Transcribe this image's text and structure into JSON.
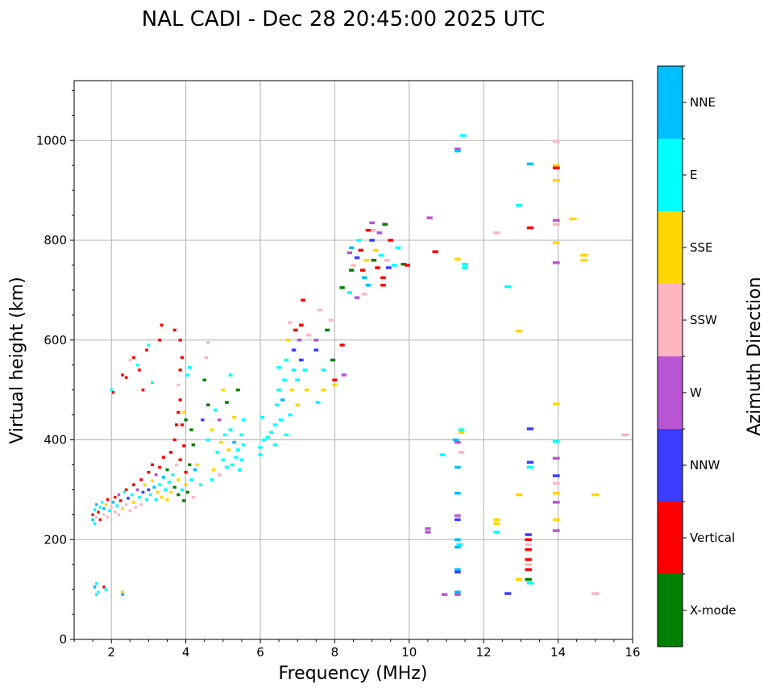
{
  "chart_data": {
    "type": "scatter",
    "title": "NAL CADI - Dec 28 20:45:00 2025 UTC",
    "xlabel": "Frequency (MHz)",
    "ylabel": "Virtual height (km)",
    "xlim": [
      1,
      16
    ],
    "ylim": [
      0,
      1120
    ],
    "xticks": [
      2,
      4,
      6,
      8,
      10,
      12,
      14,
      16
    ],
    "yticks": [
      0,
      200,
      400,
      600,
      800,
      1000
    ],
    "grid": true,
    "colorbar": {
      "label": "Azimuth Direction",
      "categories": [
        {
          "name": "X-mode",
          "color": "#008000"
        },
        {
          "name": "Vertical",
          "color": "#ff0000"
        },
        {
          "name": "NNW",
          "color": "#3c3cff"
        },
        {
          "name": "W",
          "color": "#ba55d3"
        },
        {
          "name": "SSW",
          "color": "#ffb6c1"
        },
        {
          "name": "SSE",
          "color": "#ffd700"
        },
        {
          "name": "E",
          "color": "#00ffff"
        },
        {
          "name": "NNE",
          "color": "#00bfff"
        }
      ]
    },
    "point_format": [
      "frequency_mhz",
      "virtual_height_km",
      "category_index"
    ],
    "points": [
      [
        1.55,
        105,
        7
      ],
      [
        1.6,
        112,
        6
      ],
      [
        1.65,
        95,
        6
      ],
      [
        1.6,
        90,
        6
      ],
      [
        1.8,
        105,
        1
      ],
      [
        1.85,
        100,
        6
      ],
      [
        2.3,
        95,
        5
      ],
      [
        2.3,
        90,
        7
      ],
      [
        1.5,
        240,
        7
      ],
      [
        1.5,
        250,
        1
      ],
      [
        1.55,
        260,
        6
      ],
      [
        1.55,
        232,
        6
      ],
      [
        1.6,
        270,
        7
      ],
      [
        1.6,
        245,
        4
      ],
      [
        1.65,
        255,
        1
      ],
      [
        1.7,
        265,
        6
      ],
      [
        1.7,
        240,
        1
      ],
      [
        1.75,
        275,
        6
      ],
      [
        1.8,
        250,
        4
      ],
      [
        1.8,
        262,
        7
      ],
      [
        1.85,
        270,
        5
      ],
      [
        1.9,
        245,
        4
      ],
      [
        1.9,
        280,
        1
      ],
      [
        1.95,
        258,
        6
      ],
      [
        2.0,
        265,
        4
      ],
      [
        2.05,
        275,
        7
      ],
      [
        2.1,
        285,
        1
      ],
      [
        2.1,
        255,
        4
      ],
      [
        2.15,
        268,
        6
      ],
      [
        2.2,
        290,
        3
      ],
      [
        2.2,
        250,
        4
      ],
      [
        2.25,
        278,
        1
      ],
      [
        2.3,
        262,
        5
      ],
      [
        2.35,
        295,
        6
      ],
      [
        2.4,
        270,
        4
      ],
      [
        2.4,
        300,
        1
      ],
      [
        2.45,
        283,
        2
      ],
      [
        2.5,
        258,
        4
      ],
      [
        2.55,
        290,
        6
      ],
      [
        2.6,
        310,
        1
      ],
      [
        2.6,
        275,
        5
      ],
      [
        2.65,
        265,
        4
      ],
      [
        2.7,
        300,
        3
      ],
      [
        2.75,
        285,
        6
      ],
      [
        2.8,
        320,
        1
      ],
      [
        2.8,
        270,
        4
      ],
      [
        2.85,
        295,
        2
      ],
      [
        2.9,
        310,
        5
      ],
      [
        2.95,
        280,
        6
      ],
      [
        3.0,
        335,
        1
      ],
      [
        3.0,
        300,
        2
      ],
      [
        3.05,
        290,
        6
      ],
      [
        3.1,
        318,
        5
      ],
      [
        3.1,
        350,
        1
      ],
      [
        3.15,
        305,
        7
      ],
      [
        3.2,
        280,
        6
      ],
      [
        3.2,
        330,
        3
      ],
      [
        3.25,
        295,
        5
      ],
      [
        3.3,
        345,
        1
      ],
      [
        3.3,
        310,
        6
      ],
      [
        3.35,
        285,
        5
      ],
      [
        3.4,
        365,
        1
      ],
      [
        3.4,
        325,
        7
      ],
      [
        3.45,
        300,
        6
      ],
      [
        3.5,
        280,
        5
      ],
      [
        3.5,
        340,
        0
      ],
      [
        3.55,
        315,
        6
      ],
      [
        3.6,
        375,
        1
      ],
      [
        3.6,
        295,
        5
      ],
      [
        3.65,
        330,
        6
      ],
      [
        3.7,
        305,
        0
      ],
      [
        3.75,
        350,
        4
      ],
      [
        3.8,
        290,
        0
      ],
      [
        3.8,
        320,
        5
      ],
      [
        3.85,
        360,
        1
      ],
      [
        3.9,
        300,
        6
      ],
      [
        3.95,
        278,
        0
      ],
      [
        4.0,
        335,
        1
      ],
      [
        4.0,
        310,
        5
      ],
      [
        4.05,
        295,
        0
      ],
      [
        4.1,
        350,
        0
      ],
      [
        4.15,
        320,
        6
      ],
      [
        4.2,
        285,
        4
      ],
      [
        4.25,
        340,
        7
      ],
      [
        3.7,
        400,
        1
      ],
      [
        3.75,
        430,
        1
      ],
      [
        3.8,
        455,
        1
      ],
      [
        3.85,
        480,
        1
      ],
      [
        3.8,
        510,
        4
      ],
      [
        3.85,
        540,
        1
      ],
      [
        3.9,
        565,
        1
      ],
      [
        3.85,
        600,
        1
      ],
      [
        3.7,
        620,
        1
      ],
      [
        3.95,
        455,
        5
      ],
      [
        4.05,
        530,
        6
      ],
      [
        4.1,
        545,
        6
      ],
      [
        4.15,
        420,
        0
      ],
      [
        4.0,
        440,
        0
      ],
      [
        4.2,
        390,
        0
      ],
      [
        3.9,
        430,
        1
      ],
      [
        3.95,
        388,
        1
      ],
      [
        2.0,
        500,
        6
      ],
      [
        2.05,
        495,
        1
      ],
      [
        2.3,
        530,
        1
      ],
      [
        2.4,
        525,
        1
      ],
      [
        2.5,
        560,
        4
      ],
      [
        2.6,
        565,
        1
      ],
      [
        2.7,
        550,
        6
      ],
      [
        2.75,
        540,
        1
      ],
      [
        2.95,
        580,
        1
      ],
      [
        3.0,
        590,
        6
      ],
      [
        3.3,
        600,
        1
      ],
      [
        3.35,
        630,
        1
      ],
      [
        3.1,
        515,
        6
      ],
      [
        2.85,
        500,
        1
      ],
      [
        4.45,
        440,
        2
      ],
      [
        4.5,
        520,
        0
      ],
      [
        4.55,
        565,
        4
      ],
      [
        4.6,
        595,
        4
      ],
      [
        4.6,
        470,
        0
      ],
      [
        4.6,
        400,
        6
      ],
      [
        4.7,
        420,
        5
      ],
      [
        4.75,
        340,
        5
      ],
      [
        4.8,
        460,
        6
      ],
      [
        4.85,
        375,
        6
      ],
      [
        4.9,
        330,
        4
      ],
      [
        4.9,
        440,
        3
      ],
      [
        4.95,
        395,
        5
      ],
      [
        5.0,
        500,
        5
      ],
      [
        5.0,
        360,
        6
      ],
      [
        5.05,
        410,
        6
      ],
      [
        5.1,
        345,
        6
      ],
      [
        5.1,
        475,
        0
      ],
      [
        5.15,
        380,
        5
      ],
      [
        5.2,
        420,
        6
      ],
      [
        5.2,
        530,
        6
      ],
      [
        5.25,
        350,
        6
      ],
      [
        5.3,
        395,
        7
      ],
      [
        5.3,
        445,
        5
      ],
      [
        5.35,
        365,
        6
      ],
      [
        5.4,
        380,
        6
      ],
      [
        5.4,
        500,
        0
      ],
      [
        5.45,
        340,
        6
      ],
      [
        5.5,
        410,
        6
      ],
      [
        5.5,
        360,
        6
      ],
      [
        5.55,
        390,
        6
      ],
      [
        5.55,
        440,
        6
      ],
      [
        4.7,
        320,
        6
      ],
      [
        4.4,
        310,
        6
      ],
      [
        4.3,
        350,
        5
      ],
      [
        6.0,
        385,
        6
      ],
      [
        6.0,
        370,
        6
      ],
      [
        6.05,
        445,
        6
      ],
      [
        6.1,
        400,
        6
      ],
      [
        6.2,
        405,
        6
      ],
      [
        6.3,
        415,
        6
      ],
      [
        6.4,
        430,
        6
      ],
      [
        6.4,
        390,
        6
      ],
      [
        6.45,
        470,
        6
      ],
      [
        6.5,
        500,
        6
      ],
      [
        6.5,
        545,
        6
      ],
      [
        6.55,
        440,
        6
      ],
      [
        6.6,
        480,
        7
      ],
      [
        6.65,
        520,
        6
      ],
      [
        6.7,
        560,
        6
      ],
      [
        6.7,
        410,
        6
      ],
      [
        6.75,
        600,
        5
      ],
      [
        6.8,
        450,
        6
      ],
      [
        6.8,
        635,
        4
      ],
      [
        6.85,
        500,
        5
      ],
      [
        6.9,
        580,
        2
      ],
      [
        6.9,
        540,
        6
      ],
      [
        6.95,
        620,
        1
      ],
      [
        7.0,
        470,
        5
      ],
      [
        7.0,
        520,
        6
      ],
      [
        7.05,
        600,
        3
      ],
      [
        7.1,
        560,
        2
      ],
      [
        7.1,
        630,
        1
      ],
      [
        7.15,
        680,
        1
      ],
      [
        7.2,
        540,
        6
      ],
      [
        7.25,
        500,
        5
      ],
      [
        7.3,
        610,
        4
      ],
      [
        7.5,
        600,
        3
      ],
      [
        7.5,
        580,
        2
      ],
      [
        7.6,
        660,
        4
      ],
      [
        7.7,
        540,
        6
      ],
      [
        7.8,
        620,
        0
      ],
      [
        7.9,
        640,
        4
      ],
      [
        7.95,
        560,
        0
      ],
      [
        8.0,
        520,
        1
      ],
      [
        8.0,
        510,
        5
      ],
      [
        7.7,
        500,
        5
      ],
      [
        8.2,
        590,
        1
      ],
      [
        8.25,
        530,
        3
      ],
      [
        7.55,
        475,
        6
      ],
      [
        8.2,
        705,
        0
      ],
      [
        8.4,
        695,
        6
      ],
      [
        8.4,
        775,
        3
      ],
      [
        8.45,
        785,
        7
      ],
      [
        8.45,
        740,
        0
      ],
      [
        8.5,
        750,
        4
      ],
      [
        8.6,
        685,
        3
      ],
      [
        8.6,
        765,
        2
      ],
      [
        8.65,
        800,
        6
      ],
      [
        8.7,
        780,
        1
      ],
      [
        8.75,
        740,
        1
      ],
      [
        8.8,
        725,
        7
      ],
      [
        8.8,
        692,
        4
      ],
      [
        8.85,
        760,
        5
      ],
      [
        8.9,
        710,
        7
      ],
      [
        8.9,
        820,
        1
      ],
      [
        9.0,
        835,
        3
      ],
      [
        9.0,
        800,
        2
      ],
      [
        9.05,
        760,
        0
      ],
      [
        9.1,
        780,
        5
      ],
      [
        9.15,
        745,
        1
      ],
      [
        9.2,
        815,
        3
      ],
      [
        9.25,
        770,
        6
      ],
      [
        9.3,
        725,
        1
      ],
      [
        9.35,
        832,
        0
      ],
      [
        9.4,
        760,
        4
      ],
      [
        9.45,
        745,
        2
      ],
      [
        9.5,
        800,
        1
      ],
      [
        9.6,
        750,
        6
      ],
      [
        9.7,
        785,
        6
      ],
      [
        9.85,
        752,
        0
      ],
      [
        9.95,
        750,
        1
      ],
      [
        9.3,
        710,
        1
      ],
      [
        9.05,
        820,
        4
      ],
      [
        10.55,
        845,
        3
      ],
      [
        10.5,
        222,
        3
      ],
      [
        10.5,
        215,
        3
      ],
      [
        10.7,
        777,
        1
      ],
      [
        10.9,
        370,
        6
      ],
      [
        10.95,
        90,
        3
      ],
      [
        11.3,
        983,
        3
      ],
      [
        11.3,
        979,
        7
      ],
      [
        11.45,
        1010,
        6
      ],
      [
        11.3,
        762,
        5
      ],
      [
        11.5,
        752,
        6
      ],
      [
        11.5,
        745,
        6
      ],
      [
        11.4,
        420,
        6
      ],
      [
        11.4,
        415,
        5
      ],
      [
        11.25,
        400,
        7
      ],
      [
        11.3,
        395,
        3
      ],
      [
        11.4,
        375,
        4
      ],
      [
        11.3,
        345,
        7
      ],
      [
        11.3,
        293,
        7
      ],
      [
        11.3,
        248,
        3
      ],
      [
        11.3,
        240,
        2
      ],
      [
        11.3,
        200,
        7
      ],
      [
        11.35,
        190,
        6
      ],
      [
        11.3,
        185,
        7
      ],
      [
        11.3,
        140,
        7
      ],
      [
        11.3,
        135,
        2
      ],
      [
        11.3,
        95,
        7
      ],
      [
        11.3,
        90,
        3
      ],
      [
        12.35,
        815,
        4
      ],
      [
        12.65,
        707,
        6
      ],
      [
        12.35,
        240,
        5
      ],
      [
        12.35,
        232,
        5
      ],
      [
        12.35,
        215,
        6
      ],
      [
        12.65,
        92,
        2
      ],
      [
        12.95,
        870,
        6
      ],
      [
        12.95,
        618,
        5
      ],
      [
        12.95,
        290,
        5
      ],
      [
        12.95,
        120,
        5
      ],
      [
        13.25,
        953,
        7
      ],
      [
        13.25,
        825,
        1
      ],
      [
        13.25,
        422,
        2
      ],
      [
        13.25,
        355,
        2
      ],
      [
        13.25,
        345,
        6
      ],
      [
        13.2,
        210,
        2
      ],
      [
        13.2,
        200,
        1
      ],
      [
        13.2,
        190,
        4
      ],
      [
        13.2,
        180,
        1
      ],
      [
        13.2,
        160,
        1
      ],
      [
        13.2,
        150,
        4
      ],
      [
        13.2,
        140,
        1
      ],
      [
        13.2,
        120,
        0
      ],
      [
        13.25,
        113,
        6
      ],
      [
        13.95,
        998,
        4
      ],
      [
        13.95,
        950,
        5
      ],
      [
        13.95,
        945,
        1
      ],
      [
        13.95,
        920,
        5
      ],
      [
        13.95,
        840,
        3
      ],
      [
        13.95,
        832,
        4
      ],
      [
        13.95,
        795,
        5
      ],
      [
        13.95,
        755,
        3
      ],
      [
        13.95,
        472,
        5
      ],
      [
        13.95,
        397,
        6
      ],
      [
        13.95,
        363,
        3
      ],
      [
        13.95,
        328,
        2
      ],
      [
        13.95,
        313,
        4
      ],
      [
        13.95,
        293,
        5
      ],
      [
        13.95,
        275,
        3
      ],
      [
        13.95,
        240,
        5
      ],
      [
        13.95,
        218,
        3
      ],
      [
        14.4,
        843,
        5
      ],
      [
        14.7,
        770,
        5
      ],
      [
        14.7,
        760,
        5
      ],
      [
        15.0,
        290,
        5
      ],
      [
        15.0,
        92,
        4
      ],
      [
        15.8,
        410,
        4
      ]
    ]
  }
}
